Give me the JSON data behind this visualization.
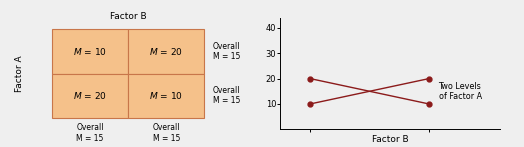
{
  "table": {
    "cells": [
      [
        [
          "M = 10",
          "M = 20"
        ],
        [
          "M = 20",
          "M = 10"
        ]
      ]
    ],
    "cell_color": "#f5c18a",
    "border_color": "#c8764a",
    "factor_b_label": "Factor B",
    "factor_a_label": "Factor A",
    "overall_col_labels": [
      "Overall\nM = 15",
      "Overall\nM = 15"
    ],
    "overall_row_labels": [
      "Overall\nM = 15",
      "Overall\nM = 15"
    ]
  },
  "plot": {
    "line1_x": [
      0,
      1
    ],
    "line1_y": [
      10,
      20
    ],
    "line2_x": [
      0,
      1
    ],
    "line2_y": [
      20,
      10
    ],
    "line_color": "#8b1a1a",
    "marker": "o",
    "markersize": 3.5,
    "linewidth": 1.0,
    "yticks": [
      10,
      20,
      30,
      40
    ],
    "xlabel": "Factor B",
    "annotation": "Two Levels\nof Factor A",
    "ylim": [
      0,
      44
    ],
    "xlim": [
      -0.25,
      1.6
    ]
  },
  "bg_color": "#efefef",
  "figsize": [
    5.24,
    1.47
  ],
  "dpi": 100
}
